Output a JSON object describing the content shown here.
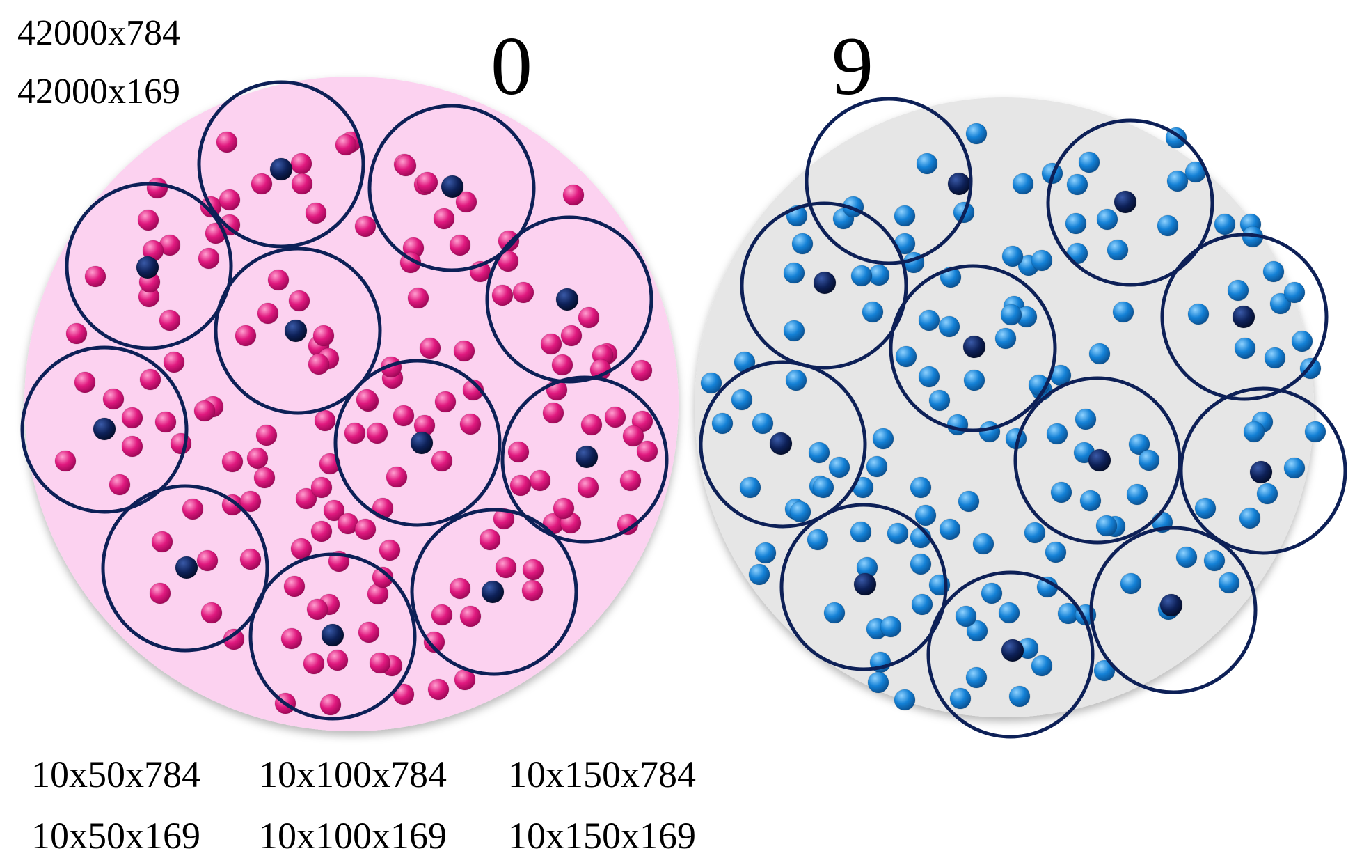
{
  "corner_labels": [
    "42000x784",
    "42000x169"
  ],
  "clusters": [
    {
      "digit": "0",
      "background": "#fcd2f0",
      "dot_color": "#e0197f",
      "dot_highlight": "#ff7ec0",
      "centroid_color": "#0d2057",
      "ring_color": "#0d2057"
    },
    {
      "digit": "9",
      "background": "#e6e6e6",
      "dot_color": "#1481d6",
      "dot_highlight": "#6ec2ff",
      "centroid_color": "#0d2057",
      "ring_color": "#0d2057"
    }
  ],
  "bottom_labels": [
    [
      "10x50x784",
      "10x100x784",
      "10x150x784"
    ],
    [
      "10x50x169",
      "10x100x169",
      "10x150x169"
    ]
  ]
}
